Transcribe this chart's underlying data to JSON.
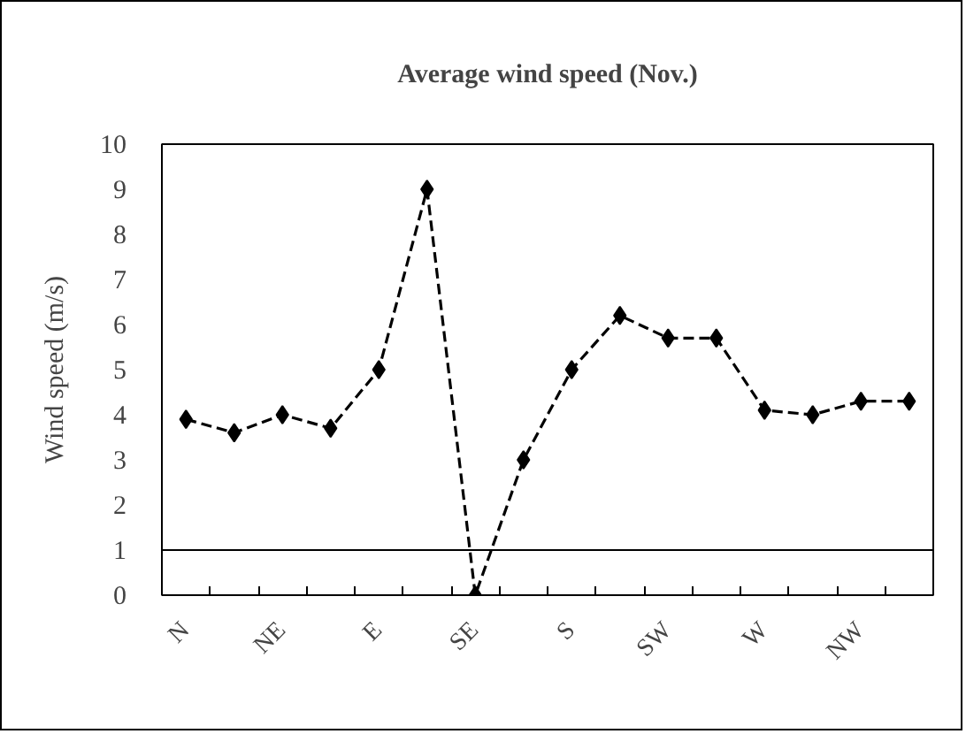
{
  "chart_data": {
    "type": "line",
    "title": "Average wind speed (Nov.)",
    "ylabel": "Wind speed (m/s)",
    "categories": [
      "N",
      null,
      "NE",
      null,
      "E",
      null,
      "SE",
      null,
      "S",
      null,
      "SW",
      null,
      "W",
      null,
      "NW",
      null
    ],
    "values": [
      3.9,
      3.6,
      4.0,
      3.7,
      5.0,
      9.0,
      0,
      3.0,
      5.0,
      6.2,
      5.7,
      5.7,
      4.1,
      4.0,
      4.3,
      4.3
    ],
    "color": "#000000",
    "ylim": [
      0,
      10
    ],
    "yticks": [
      0,
      1,
      2,
      3,
      4,
      5,
      6,
      7,
      8,
      9,
      10
    ],
    "ref_lines": [
      {
        "axis": "y",
        "value": 1,
        "color": "#000000",
        "line_style": "solid"
      }
    ],
    "marker": "diamond",
    "line_style": "dashed",
    "grid": false
  }
}
